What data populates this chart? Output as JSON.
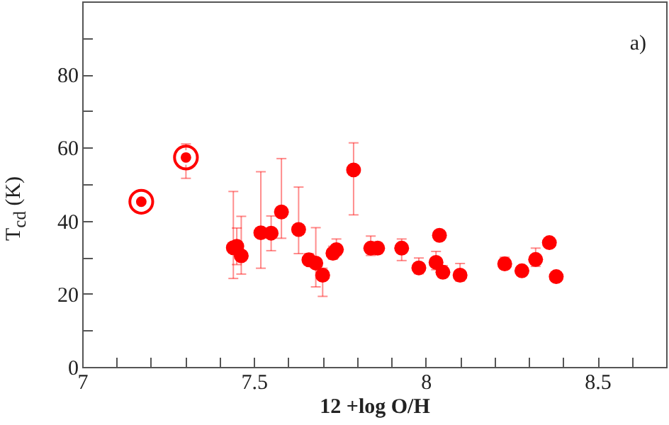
{
  "chart_data": {
    "type": "scatter",
    "xlabel": "12 +log O/H",
    "ylabel": "T$_{cd}$ (K)",
    "annotations": [
      "a)"
    ],
    "xlim": [
      7,
      8.7
    ],
    "ylim": [
      0,
      100
    ],
    "xticks": [
      7,
      {
        "value": 7.1,
        "label": null
      },
      {
        "value": 7.2,
        "label": null
      },
      {
        "value": 7.3,
        "label": null
      },
      {
        "value": 7.4,
        "label": null
      },
      7.5,
      {
        "value": 7.6,
        "label": null
      },
      {
        "value": 7.7,
        "label": null
      },
      {
        "value": 7.8,
        "label": null
      },
      {
        "value": 7.9,
        "label": null
      },
      8,
      {
        "value": 8.1,
        "label": null
      },
      {
        "value": 8.2,
        "label": null
      },
      {
        "value": 8.3,
        "label": null
      },
      {
        "value": 8.4,
        "label": null
      },
      8.5,
      {
        "value": 8.6,
        "label": null
      }
    ],
    "yticks": [
      0,
      {
        "value": 10,
        "label": null
      },
      20,
      {
        "value": 30,
        "label": null
      },
      40,
      {
        "value": 50,
        "label": null
      },
      60,
      {
        "value": 70,
        "label": null
      },
      80,
      {
        "value": 90,
        "label": null
      }
    ],
    "grid": false,
    "marker": "circle",
    "series": [
      {
        "color": "#ff0000",
        "x": [
          7.44,
          7.45,
          7.463,
          7.52,
          7.55,
          7.58,
          7.63,
          7.66,
          7.68,
          7.7,
          7.73,
          7.74,
          7.79,
          7.84,
          7.86,
          7.93,
          7.98,
          8.03,
          8.04,
          8.05,
          8.1,
          8.23,
          8.28,
          8.32,
          8.36,
          8.38
        ],
        "values": [
          32.6,
          33,
          30.4,
          36.7,
          36.6,
          42.4,
          37.6,
          29.3,
          28.4,
          25.1,
          31.1,
          32.1,
          53.9,
          32.5,
          32.5,
          32.5,
          27.1,
          28.6,
          36,
          25.9,
          25.1,
          28.2,
          26.3,
          29.4,
          34,
          24.7
        ],
        "errors": [
          [
            24.2,
            48
          ],
          [
            28,
            38
          ],
          [
            25.4,
            41.2
          ],
          [
            27,
            53.4
          ],
          [
            31.8,
            41.3
          ],
          [
            35.2,
            57
          ],
          [
            31,
            49.2
          ],
          [
            28,
            31
          ],
          [
            21.9,
            38.1
          ],
          [
            19.3,
            27
          ],
          [
            29.5,
            33
          ],
          [
            30.5,
            35
          ],
          [
            41.6,
            61.3
          ],
          [
            30.5,
            35.8
          ],
          [
            31,
            34
          ],
          [
            29.1,
            35
          ],
          [
            25.5,
            29.8
          ],
          [
            26.6,
            31.6
          ],
          null,
          [
            24.5,
            27.7
          ],
          [
            23.5,
            28.3
          ],
          [
            26.8,
            30
          ],
          null,
          [
            27.5,
            32.5
          ],
          [
            33,
            35
          ],
          null
        ]
      },
      {
        "color": "#ff0000",
        "x": [
          7.172,
          7.302
        ],
        "values": [
          45.2,
          57.3
        ],
        "errors": [
          null,
          [
            51.6,
            61
          ]
        ]
      }
    ]
  }
}
